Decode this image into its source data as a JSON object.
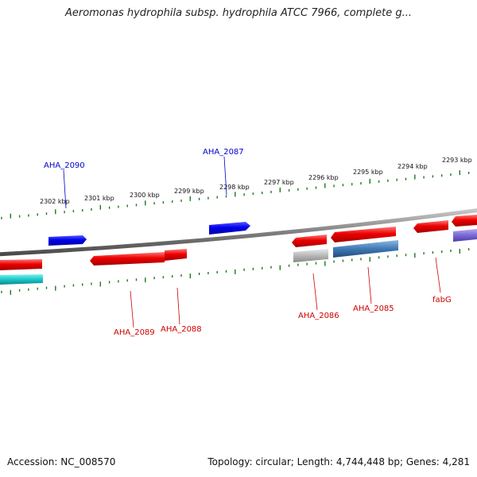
{
  "title": "Aeromonas hydrophila subsp. hydrophila ATCC 7966, complete g...",
  "footer": {
    "accession": "Accession: NC_008570",
    "summary": "Topology: circular; Length: 4,744,448 bp; Genes: 4,281"
  },
  "ruler": [
    "2302 kbp",
    "2301 kbp",
    "2300 kbp",
    "2299 kbp",
    "2298 kbp",
    "2297 kbp",
    "2296 kbp",
    "2295 kbp",
    "2294 kbp",
    "2293 kbp"
  ],
  "gene_labels": [
    "AHA_2090",
    "AHA_2087",
    "AHA_2089",
    "AHA_2088",
    "AHA_2086",
    "AHA_2085",
    "fabG"
  ],
  "colors": {
    "forward_gene": "#0000ee",
    "reverse_gene": "#ee0000",
    "tick": "#1a7a1a",
    "backbone": "#808080",
    "cyan_gene": "#19c8c8",
    "gray_gene": "#b8b8b8",
    "steel_gene": "#3f78b5",
    "purple_gene": "#7a68d6"
  }
}
